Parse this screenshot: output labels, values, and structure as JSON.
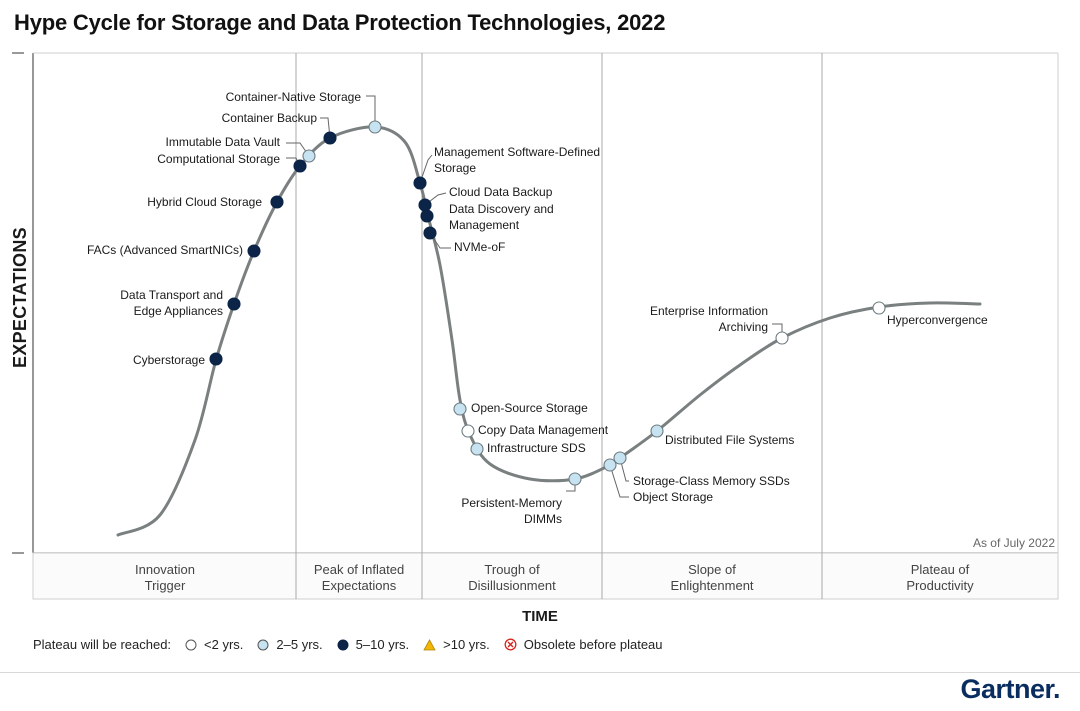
{
  "title": "Hype Cycle for Storage and Data Protection Technologies, 2022",
  "y_axis_label": "EXPECTATIONS",
  "x_axis_label": "TIME",
  "as_of": "As of July 2022",
  "phases": [
    "Innovation\nTrigger",
    "Peak of Inflated\nExpectations",
    "Trough of\nDisillusionment",
    "Slope of\nEnlightenment",
    "Plateau of\nProductivity"
  ],
  "legend": {
    "title": "Plateau will be reached:",
    "items": [
      {
        "label": "<2 yrs.",
        "symbol": "circle-white"
      },
      {
        "label": "2–5 yrs.",
        "symbol": "circle-lightblue"
      },
      {
        "label": "5–10 yrs.",
        "symbol": "circle-navy"
      },
      {
        "label": ">10 yrs.",
        "symbol": "triangle-yellow"
      },
      {
        "label": "Obsolete before plateau",
        "symbol": "x-circle-red"
      }
    ]
  },
  "colors": {
    "lt2": "#ffffff",
    "y2to5": "#c7e3f1",
    "y5to10": "#0b2447",
    "gt10": "#f2b705",
    "obsolete": "#d7261e",
    "curve": "#7a7f80",
    "frame": "#555555"
  },
  "technologies": [
    {
      "name": "Cyberstorage",
      "category": "5-10"
    },
    {
      "name": "Data Transport and\nEdge Appliances",
      "category": "5-10"
    },
    {
      "name": "FACs (Advanced SmartNICs)",
      "category": "5-10"
    },
    {
      "name": "Hybrid Cloud Storage",
      "category": "5-10"
    },
    {
      "name": "Computational Storage",
      "category": "5-10"
    },
    {
      "name": "Immutable Data Vault",
      "category": "2-5"
    },
    {
      "name": "Container Backup",
      "category": "5-10"
    },
    {
      "name": "Container-Native Storage",
      "category": "2-5"
    },
    {
      "name": "Management Software-Defined\nStorage",
      "category": "5-10"
    },
    {
      "name": "Cloud Data Backup",
      "category": "5-10"
    },
    {
      "name": "Data Discovery and\nManagement",
      "category": "5-10"
    },
    {
      "name": "NVMe-oF",
      "category": "5-10"
    },
    {
      "name": "Open-Source Storage",
      "category": "2-5"
    },
    {
      "name": "Copy Data Management",
      "category": "<2"
    },
    {
      "name": "Infrastructure SDS",
      "category": "2-5"
    },
    {
      "name": "Persistent-Memory\nDIMMs",
      "category": "2-5"
    },
    {
      "name": "Object Storage",
      "category": "2-5"
    },
    {
      "name": "Storage-Class Memory SSDs",
      "category": "2-5"
    },
    {
      "name": "Distributed File Systems",
      "category": "2-5"
    },
    {
      "name": "Enterprise Information\nArchiving",
      "category": "<2"
    },
    {
      "name": "Hyperconvergence",
      "category": "<2"
    }
  ],
  "brand": "Gartner."
}
